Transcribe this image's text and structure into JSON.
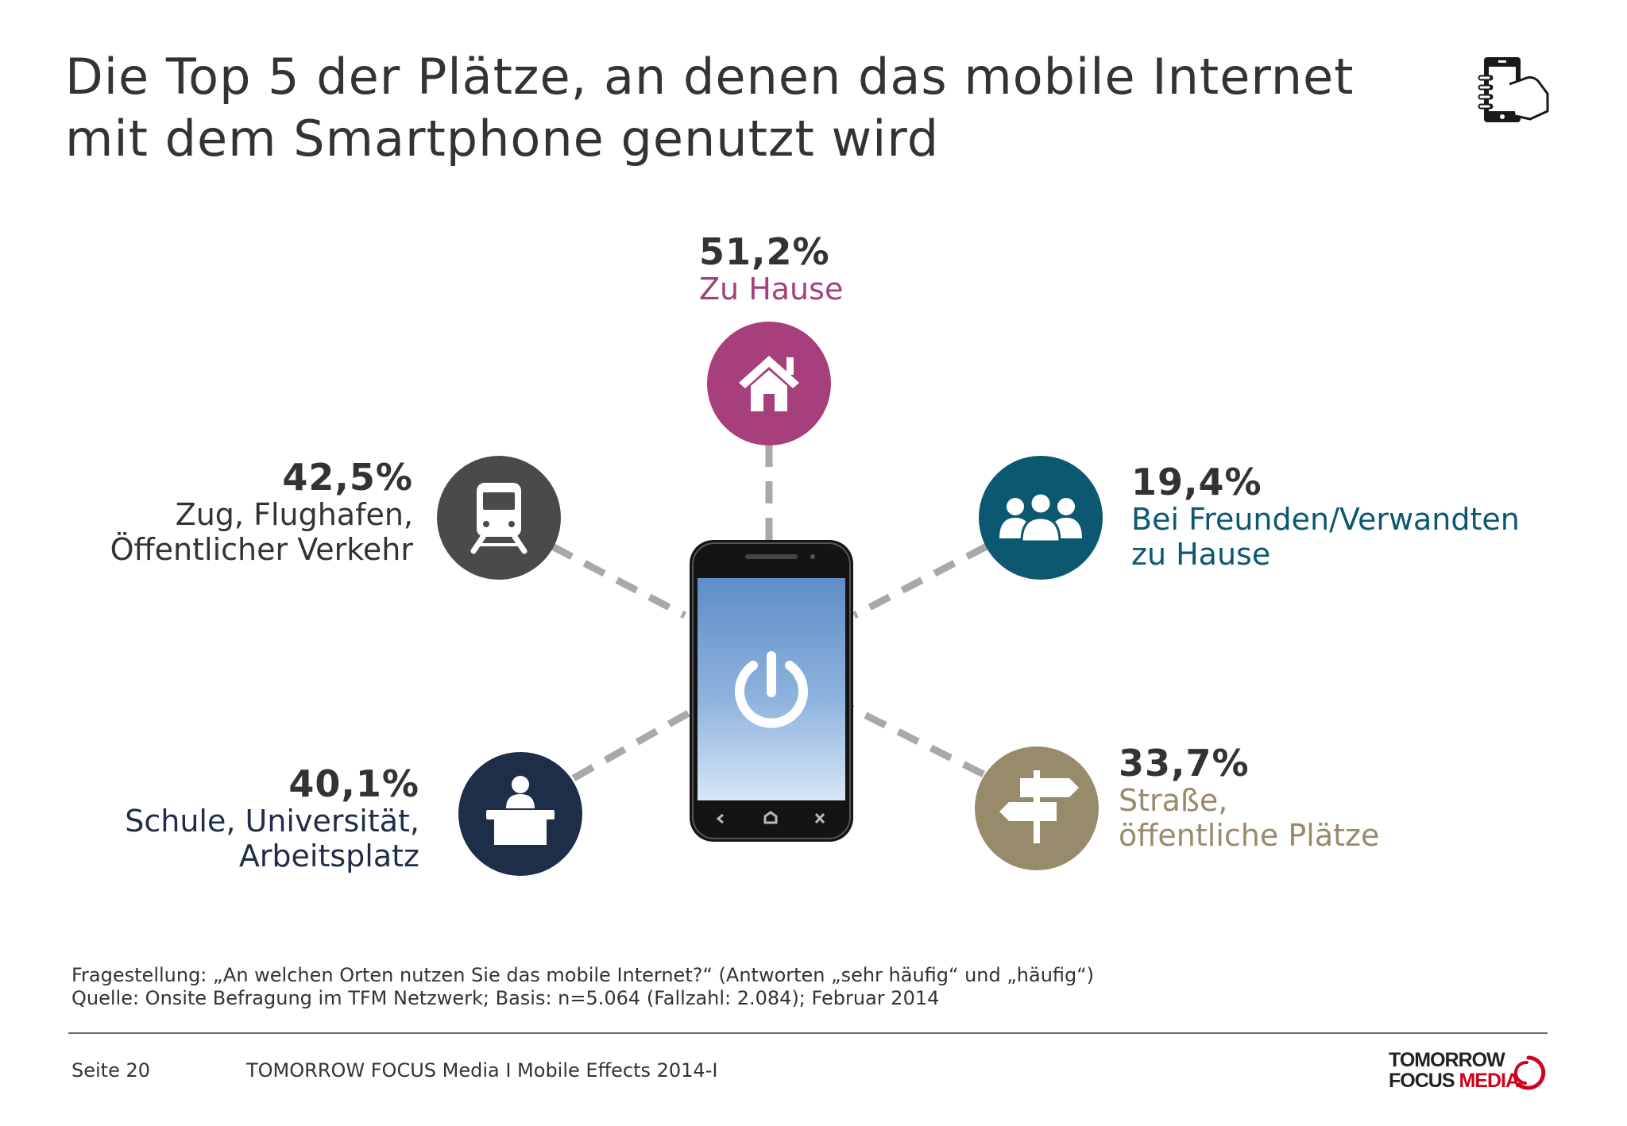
{
  "title": {
    "line1": "Die Top 5 der Plätze, an denen das mobile Internet",
    "line2": "mit dem Smartphone genutzt wird"
  },
  "icons": {
    "corner": "hand-holding-phone-icon",
    "phone": "smartphone-icon",
    "power": "power-icon",
    "nav_back": "back-icon",
    "nav_home": "home-nav-icon",
    "nav_close": "close-icon"
  },
  "colors": {
    "home": "#a63f7c",
    "transport": "#4a4a4a",
    "friends": "#0b5870",
    "education": "#1e2e48",
    "street": "#978b6c",
    "dashes": "#a8a8a8"
  },
  "places": [
    {
      "id": "home",
      "percent": "51,2%",
      "label_lines": [
        "Zu Hause"
      ],
      "icon": "house-icon"
    },
    {
      "id": "transport",
      "percent": "42,5%",
      "label_lines": [
        "Zug, Flughafen,",
        "Öffentlicher Verkehr"
      ],
      "icon": "train-icon"
    },
    {
      "id": "friends",
      "percent": "19,4%",
      "label_lines": [
        "Bei Freunden/Verwandten",
        "zu Hause"
      ],
      "icon": "people-group-icon"
    },
    {
      "id": "education",
      "percent": "40,1%",
      "label_lines": [
        "Schule, Universität,",
        "Arbeitsplatz"
      ],
      "icon": "speaker-desk-icon"
    },
    {
      "id": "street",
      "percent": "33,7%",
      "label_lines": [
        "Straße,",
        "öffentliche Plätze"
      ],
      "icon": "signpost-icon"
    }
  ],
  "notes": {
    "question": "Fragestellung: „An welchen Orten nutzen Sie das mobile Internet?“ (Antworten  „sehr häufig“ und „häufig“)",
    "source": "Quelle: Onsite Befragung im TFM Netzwerk; Basis: n=5.064 (Fallzahl: 2.084); Februar 2014"
  },
  "footer": {
    "page": "Seite 20",
    "company": "TOMORROW FOCUS Media  I  Mobile Effects 2014-I",
    "logo_line1": "TOMORROW",
    "logo_line2a": "FOCUS ",
    "logo_line2b": "MEDIA"
  }
}
